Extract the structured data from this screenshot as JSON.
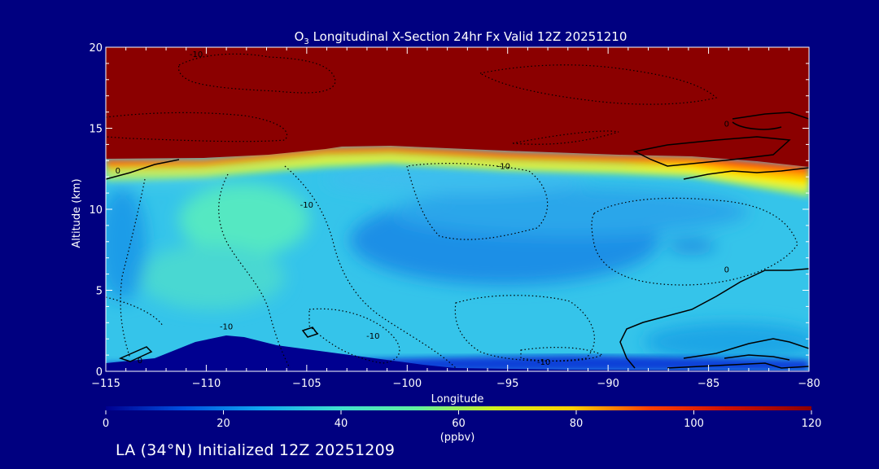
{
  "chart_data": {
    "type": "heatmap",
    "title_prefix": "O",
    "title_subscript": "3",
    "title_suffix": " Longitudinal X-Section 24hr  Fx Valid 12Z 20251210",
    "xlabel": "Longitude",
    "ylabel": "Altitude (km)",
    "xlim": [
      -115,
      -80
    ],
    "ylim": [
      0,
      20
    ],
    "x_ticks": [
      -115,
      -110,
      -105,
      -100,
      -95,
      -90,
      -85,
      -80
    ],
    "x_tick_labels": [
      "−115",
      "−110",
      "−105",
      "−100",
      "−95",
      "−90",
      "−85",
      "−80"
    ],
    "y_ticks": [
      0,
      5,
      10,
      15,
      20
    ],
    "y_tick_labels": [
      "0",
      "5",
      "10",
      "15",
      "20"
    ],
    "colorbar": {
      "label": "(ppbv)",
      "range": [
        0,
        120
      ],
      "ticks": [
        0,
        20,
        40,
        60,
        80,
        100,
        120
      ],
      "tick_labels": [
        "0",
        "20",
        "40",
        "60",
        "80",
        "100",
        "120"
      ],
      "colors": [
        "#000090",
        "#0050e0",
        "#10a8f0",
        "#40e0d0",
        "#60f0a0",
        "#d0f020",
        "#ffd000",
        "#ff4000",
        "#d01000",
        "#8b0000"
      ]
    },
    "tropopause_height": [
      {
        "x": -115,
        "y": 13.1
      },
      {
        "x": -110,
        "y": 13.1
      },
      {
        "x": -103,
        "y": 13.9
      },
      {
        "x": -95,
        "y": 13.5
      },
      {
        "x": -90,
        "y": 13.2
      },
      {
        "x": -87,
        "y": 12.8
      },
      {
        "x": -83,
        "y": 12.6
      },
      {
        "x": -80,
        "y": 12.3
      }
    ],
    "terrain_height": [
      {
        "x": -115,
        "y": 0.5
      },
      {
        "x": -112,
        "y": 0.8
      },
      {
        "x": -110,
        "y": 1.9
      },
      {
        "x": -108.5,
        "y": 2.2
      },
      {
        "x": -106,
        "y": 1.7
      },
      {
        "x": -103,
        "y": 1.2
      },
      {
        "x": -100,
        "y": 0.6
      },
      {
        "x": -97,
        "y": 0.3
      },
      {
        "x": -80,
        "y": 0.0
      }
    ],
    "contour_labels": [
      {
        "text": "-10",
        "x": -110.5,
        "y": 19.6
      },
      {
        "text": "0",
        "x": -114.4,
        "y": 12.4
      },
      {
        "text": "-10",
        "x": -105.0,
        "y": 10.3
      },
      {
        "text": "-10",
        "x": -95.2,
        "y": 12.7
      },
      {
        "text": "-10",
        "x": -109.0,
        "y": 2.8
      },
      {
        "text": "-10",
        "x": -101.7,
        "y": 2.2
      },
      {
        "text": "-10",
        "x": -93.2,
        "y": 0.6
      },
      {
        "text": "0",
        "x": -84.1,
        "y": 6.3
      },
      {
        "text": "0",
        "x": -113.3,
        "y": 0.7
      },
      {
        "text": "0",
        "x": -84.1,
        "y": 15.3
      }
    ]
  },
  "footer": {
    "caption": "LA (34°N) Initialized 12Z 20251209"
  }
}
